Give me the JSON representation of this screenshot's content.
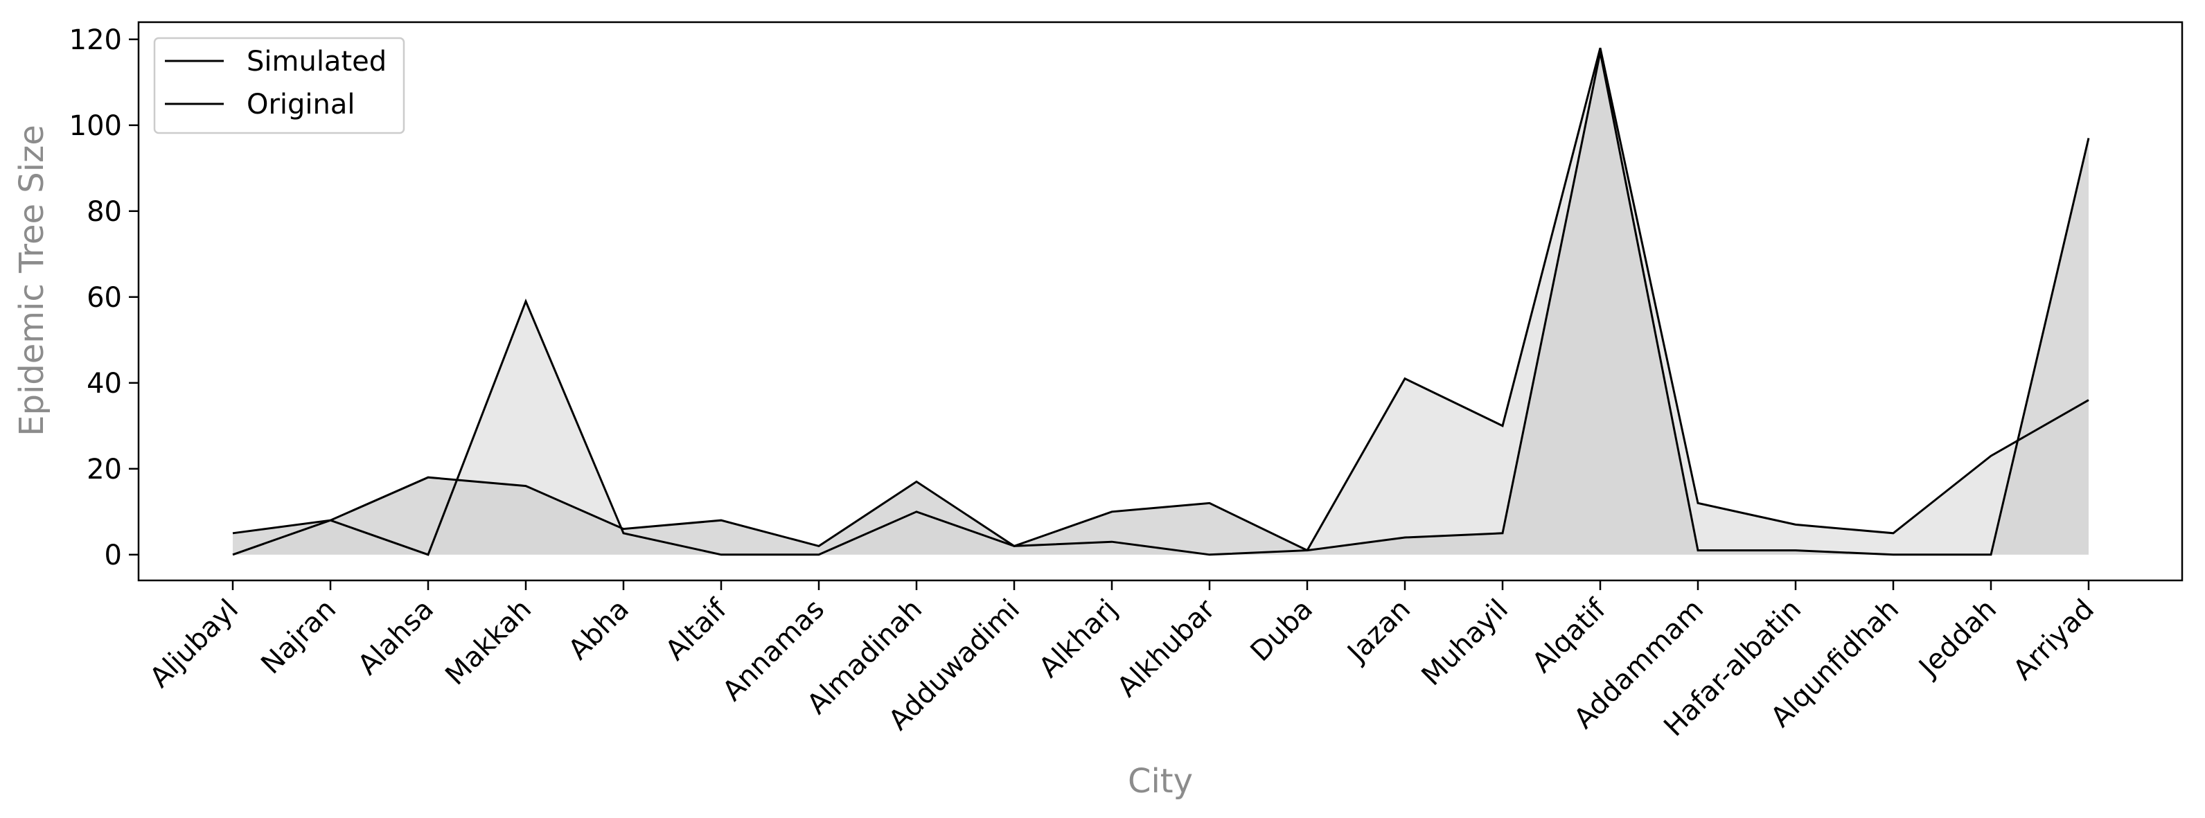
{
  "chart_data": {
    "type": "area",
    "title": "",
    "xlabel": "City",
    "ylabel": "Epidemic Tree Size",
    "categories": [
      "Aljubayl",
      "Najran",
      "Alahsa",
      "Makkah",
      "Abha",
      "Altaif",
      "Annamas",
      "Almadinah",
      "Adduwadimi",
      "Alkharj",
      "Alkhubar",
      "Duba",
      "Jazan",
      "Muhayil",
      "Alqatif",
      "Addammam",
      "Hafar-albatin",
      "Alqunfidhah",
      "Jeddah",
      "Arriyad"
    ],
    "yticks": [
      0,
      20,
      40,
      60,
      80,
      100,
      120
    ],
    "ylim": [
      -6,
      124
    ],
    "grid": false,
    "legend_placement": "top-left",
    "series": [
      {
        "name": "Simulated",
        "line_color": "#000000",
        "fill_color": "#e8e8e8",
        "values": [
          0,
          8,
          0,
          59,
          5,
          0,
          0,
          10,
          2,
          3,
          0,
          1,
          41,
          30,
          118,
          12,
          7,
          5,
          23,
          36
        ]
      },
      {
        "name": "Original",
        "line_color": "#000000",
        "fill_color": "#d3d3d3",
        "values": [
          5,
          8,
          18,
          16,
          6,
          8,
          2,
          17,
          2,
          10,
          12,
          1,
          4,
          5,
          117,
          1,
          1,
          0,
          0,
          97
        ]
      }
    ]
  }
}
